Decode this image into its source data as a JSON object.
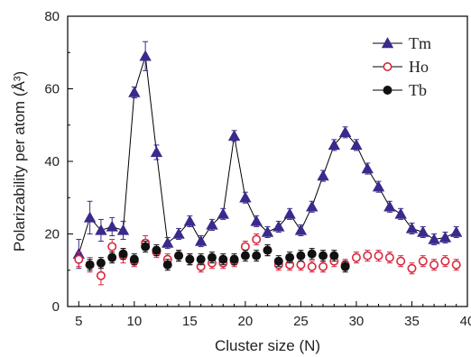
{
  "chart_data": {
    "type": "scatter",
    "xlabel": "Cluster size (N)",
    "ylabel": "Polarizability per atom (Å³)",
    "xlim": [
      4,
      40
    ],
    "ylim": [
      0,
      80
    ],
    "xticks": [
      5,
      10,
      15,
      20,
      25,
      30,
      35,
      40
    ],
    "yticks": [
      0,
      20,
      40,
      60,
      80
    ],
    "grid": false,
    "legend_position": "top-right",
    "series": [
      {
        "name": "Tm",
        "marker": "filled-triangle",
        "color": "#3b2a8c",
        "connected": true,
        "x": [
          5,
          6,
          7,
          8,
          9,
          10,
          11,
          12,
          13,
          14,
          15,
          16,
          17,
          18,
          19,
          20,
          21,
          22,
          23,
          24,
          25,
          26,
          27,
          28,
          29,
          30,
          31,
          32,
          33,
          34,
          35,
          36,
          37,
          38,
          39
        ],
        "y": [
          14.5,
          24.5,
          21,
          22,
          21,
          59,
          69,
          42.5,
          17.5,
          20,
          23.5,
          18,
          22.5,
          25.5,
          47,
          30,
          23.5,
          20.5,
          22,
          25.5,
          21,
          27.5,
          36,
          44.5,
          48,
          44.5,
          38,
          33,
          27.5,
          25.5,
          21.5,
          20.5,
          18.5,
          19,
          20.5
        ],
        "err": [
          4,
          4.5,
          3,
          2.5,
          2.5,
          1.5,
          4,
          2,
          1.5,
          1.5,
          1.5,
          1.5,
          1.5,
          1.5,
          1.5,
          1.5,
          1.5,
          1.5,
          1.5,
          1.5,
          1.5,
          1.5,
          1.5,
          1.5,
          1.5,
          1.5,
          1.5,
          1.5,
          1.5,
          1.5,
          1.5,
          1.5,
          1.5,
          1.5,
          1.5
        ]
      },
      {
        "name": "Ho",
        "marker": "open-circle",
        "color": "#d7263d",
        "connected": false,
        "x": [
          5,
          6,
          7,
          8,
          9,
          10,
          11,
          12,
          13,
          14,
          15,
          16,
          17,
          18,
          19,
          20,
          21,
          22,
          23,
          24,
          25,
          26,
          27,
          28,
          29,
          30,
          31,
          32,
          33,
          34,
          35,
          36,
          37,
          38,
          39
        ],
        "y": [
          13,
          11.5,
          8.5,
          16.5,
          14,
          12.5,
          17.5,
          15,
          13,
          14,
          13,
          11,
          12,
          12,
          12.5,
          16.5,
          18.5,
          15.5,
          11.5,
          11.5,
          11.5,
          11,
          11,
          12.5,
          11.5,
          13.5,
          14,
          14,
          13.5,
          12.5,
          10.5,
          12.5,
          11.5,
          12.5,
          11.5
        ],
        "err": [
          2,
          2,
          2.5,
          2,
          2,
          1.5,
          2,
          1.5,
          1.5,
          1.5,
          1.5,
          1.5,
          1.5,
          1.5,
          1.5,
          1.5,
          1.5,
          1.5,
          1.5,
          1.5,
          1.5,
          1.5,
          1.5,
          1.5,
          1.5,
          1.5,
          1.5,
          1.5,
          1.5,
          1.5,
          1.5,
          1.5,
          1.5,
          1.5,
          1.5
        ]
      },
      {
        "name": "Tb",
        "marker": "filled-circle",
        "color": "#111111",
        "connected": false,
        "x": [
          6,
          7,
          8,
          9,
          10,
          11,
          12,
          13,
          14,
          15,
          16,
          17,
          18,
          19,
          20,
          21,
          22,
          23,
          24,
          25,
          26,
          27,
          28,
          29
        ],
        "y": [
          11.5,
          12,
          13.5,
          14.5,
          13,
          16.5,
          15.5,
          11.5,
          14,
          13,
          13,
          13.5,
          13,
          13,
          14,
          14,
          15.5,
          12.5,
          13.5,
          14,
          14.5,
          14,
          14,
          11
        ],
        "err": [
          1.5,
          1.5,
          1.5,
          1.5,
          1.5,
          1.5,
          1.5,
          1.5,
          1.5,
          1.5,
          1.5,
          1.5,
          1.5,
          1.5,
          1.5,
          1.5,
          1.5,
          1.5,
          1.5,
          1.5,
          1.5,
          1.5,
          1.5,
          1.5
        ]
      }
    ]
  }
}
